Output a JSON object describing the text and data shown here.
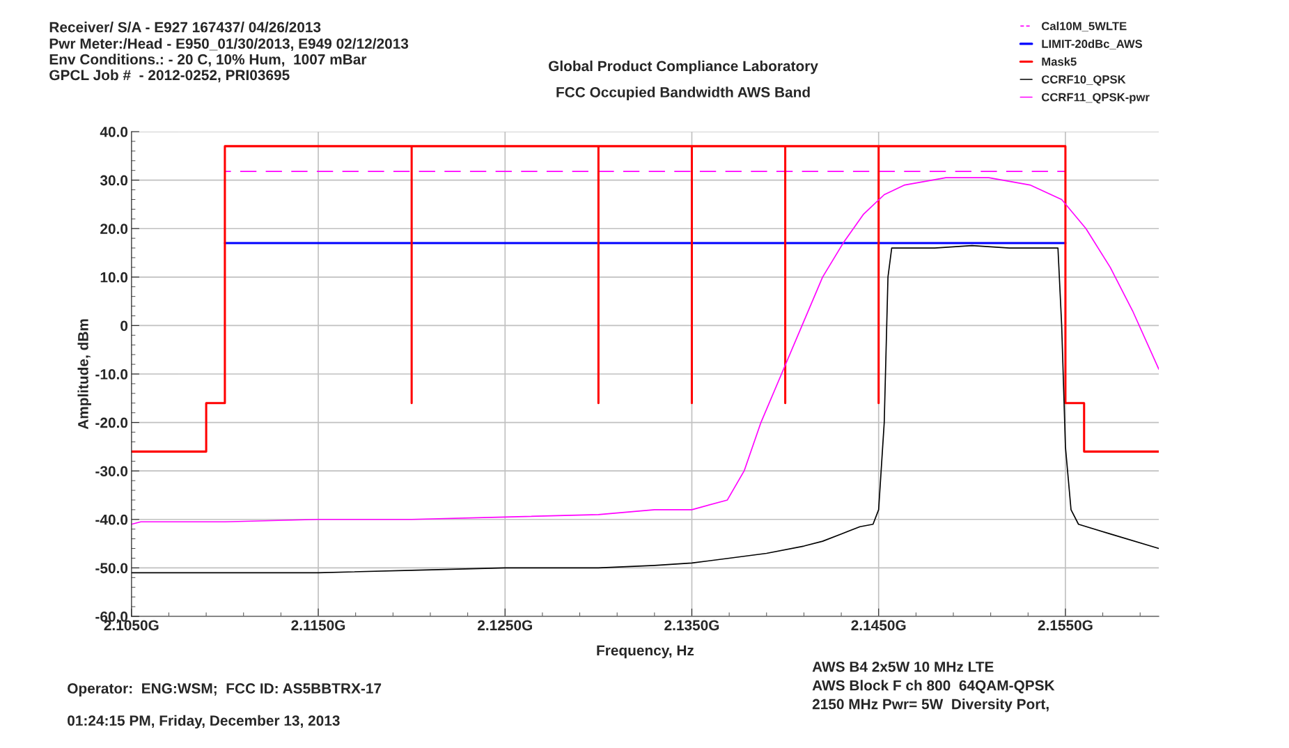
{
  "chart_data": {
    "type": "line",
    "title": "Global Product Compliance Laboratory",
    "subtitle": "FCC Occupied Bandwidth AWS Band",
    "xlabel": "Frequency, Hz",
    "ylabel": "Amplitude, dBm",
    "annotations": [
      "Receiver/ S/A - E927 167437/ 04/26/2013",
      "Pwr Meter:/Head - E950_01/30/2013, E949 02/12/2013",
      "Env Conditions.: - 20 C, 10% Hum,  1007 mBar",
      "GPCL Job #  - 2012-0252, PRI03695",
      "AWS B4 2x5W 10 MHz LTE",
      "AWS Block F ch 800  64QAM-QPSK",
      "2150 MHz Pwr= 5W  Diversity Port,",
      "Operator:  ENG:WSM;  FCC ID: AS5BBTRX-17",
      "01:24:15 PM, Friday, December 13, 2013"
    ],
    "xlim": [
      2.105,
      2.16
    ],
    "ylim": [
      -60,
      40
    ],
    "xticks": [
      {
        "value": 2.105,
        "label": "2.1050G"
      },
      {
        "value": 2.115,
        "label": "2.1150G"
      },
      {
        "value": 2.125,
        "label": "2.1250G"
      },
      {
        "value": 2.135,
        "label": "2.1350G"
      },
      {
        "value": 2.145,
        "label": "2.1450G"
      },
      {
        "value": 2.155,
        "label": "2.1550G"
      }
    ],
    "yticks": [
      {
        "value": 40,
        "label": "40.0"
      },
      {
        "value": 30,
        "label": "30.0"
      },
      {
        "value": 20,
        "label": "20.0"
      },
      {
        "value": 10,
        "label": "10.0"
      },
      0,
      {
        "value": -10,
        "label": "-10.0"
      },
      {
        "value": -20,
        "label": "-20.0"
      },
      {
        "value": -30,
        "label": "-30.0"
      },
      {
        "value": -40,
        "label": "-40.0"
      },
      {
        "value": -50,
        "label": "-50.0"
      },
      {
        "value": -60,
        "label": "-60.0"
      }
    ],
    "grid": true,
    "legend": "top right",
    "series": [
      {
        "name": "Cal10M_5WLTE",
        "color": "#ff00ff",
        "line_style": "dashed",
        "x": [
          2.11,
          2.155
        ],
        "values": [
          31.8,
          31.8
        ]
      },
      {
        "name": "LIMIT-20dBc_AWS",
        "color": "#0000ff",
        "x": [
          2.11,
          2.155
        ],
        "values": [
          17,
          17
        ]
      },
      {
        "name": "Mask5",
        "color": "#ff0000",
        "x": [
          2.105,
          2.109,
          2.109,
          2.11,
          2.11,
          2.12,
          2.12,
          2.12,
          2.13,
          2.13,
          2.13,
          2.135,
          2.135,
          2.135,
          2.14,
          2.14,
          2.14,
          2.145,
          2.145,
          2.145,
          2.155,
          2.155,
          2.156,
          2.156,
          2.16
        ],
        "values": [
          -26,
          -26,
          -16,
          -16,
          37,
          37,
          -16,
          37,
          37,
          -16,
          37,
          37,
          -16,
          37,
          37,
          -16,
          37,
          37,
          -16,
          37,
          37,
          -16,
          -16,
          -26,
          -26
        ]
      },
      {
        "name": "CCRF10_QPSK",
        "color": "#000000",
        "x": [
          2.105,
          2.11,
          2.115,
          2.12,
          2.125,
          2.13,
          2.133,
          2.135,
          2.137,
          2.139,
          2.141,
          2.142,
          2.143,
          2.144,
          2.1447,
          2.145,
          2.1453,
          2.1455,
          2.1457,
          2.148,
          2.15,
          2.152,
          2.154,
          2.1546,
          2.1548,
          2.155,
          2.1553,
          2.1557,
          2.1574,
          2.16
        ],
        "values": [
          -51,
          -51,
          -51,
          -50.5,
          -50,
          -50,
          -49.5,
          -49,
          -48,
          -47,
          -45.5,
          -44.5,
          -43,
          -41.5,
          -41,
          -38,
          -20,
          10,
          16,
          16,
          16.5,
          16,
          16,
          16,
          0,
          -25,
          -38,
          -41,
          -43,
          -46
        ]
      },
      {
        "name": "CCRF11_QPSK-pwr",
        "color": "#ff00ff",
        "x": [
          2.105,
          2.1055,
          2.11,
          2.115,
          2.12,
          2.125,
          2.13,
          2.133,
          2.135,
          2.1369,
          2.1378,
          2.1387,
          2.1398,
          2.1409,
          2.142,
          2.1431,
          2.1442,
          2.1453,
          2.1464,
          2.1486,
          2.1509,
          2.1531,
          2.1548,
          2.1561,
          2.1574,
          2.1586,
          2.16
        ],
        "values": [
          -41,
          -40.5,
          -40.5,
          -40,
          -40,
          -39.5,
          -39,
          -38,
          -38,
          -36,
          -30,
          -20,
          -10,
          0,
          10,
          17,
          23,
          27,
          29,
          30.5,
          30.5,
          29,
          26,
          20,
          12,
          3,
          -9
        ]
      }
    ]
  }
}
